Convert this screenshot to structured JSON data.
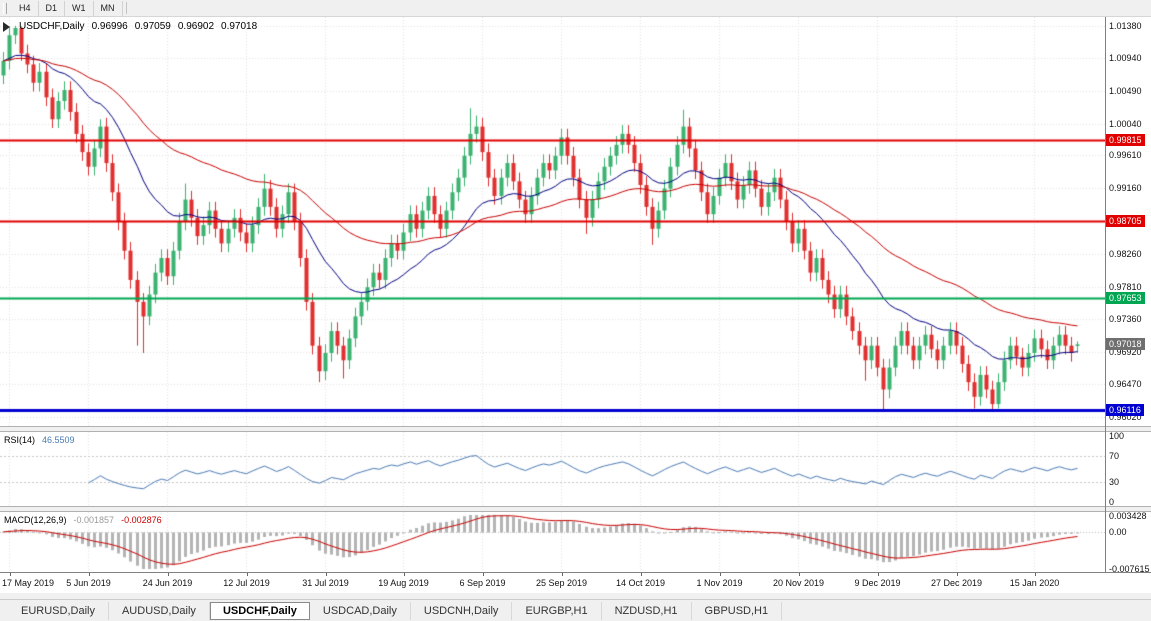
{
  "toolbar": {
    "buttons": [
      "H4",
      "D1",
      "W1",
      "MN"
    ]
  },
  "window": {
    "tabs": [
      "EURUSD,Daily",
      "AUDUSD,Daily",
      "USDCHF,Daily",
      "USDCAD,Daily",
      "USDCNH,Daily",
      "EURGBP,H1",
      "NZDUSD,H1",
      "GBPUSD,H1"
    ],
    "active_tab": "USDCHF,Daily",
    "active_tab_index": 2
  },
  "chart": {
    "info": {
      "symbol_label": "USDCHF,Daily",
      "open": "0.96996",
      "high": "0.97059",
      "low": "0.96902",
      "close": "0.97018"
    },
    "colors": {
      "background": "#ffffff",
      "grid": "#e3e3e3",
      "bull": "#3cb371",
      "bear": "#e03030",
      "ma_fast": "#000080",
      "ma_slow": "#c80000",
      "axis_text": "#111111"
    },
    "price_axis_labels": [
      "1.01380",
      "1.00940",
      "1.00490",
      "1.00040",
      "0.99610",
      "0.99160",
      "0.98260",
      "0.97810",
      "0.97360",
      "0.96920",
      "0.96470",
      "0.96020"
    ]
  },
  "rsi": {
    "label": "RSI(14)",
    "value": "46.5509",
    "color": "#4a7ab5",
    "axis_labels": [
      "100",
      "70",
      "30",
      "0"
    ],
    "levels": [
      70,
      30
    ]
  },
  "macd": {
    "label": "MACD(12,26,9)",
    "value_main": "-0.001857",
    "value_signal": "-0.002876",
    "hist_color": "#b4b4b4",
    "signal_color": "#c80000",
    "axis_labels": [
      "0.003428",
      "0.00",
      "-0.007615"
    ],
    "scale_max": 0.003428,
    "scale_min": -0.007615
  },
  "chart_data": {
    "type": "candlestick",
    "title": "USDCHF,Daily",
    "symbol": "USDCHF",
    "timeframe": "Daily",
    "last_ohlc": {
      "open": 0.96996,
      "high": 0.97059,
      "low": 0.96902,
      "close": 0.97018
    },
    "ylim": [
      0.959,
      1.015
    ],
    "x_tick_labels": [
      "17 May 2019",
      "5 Jun 2019",
      "24 Jun 2019",
      "12 Jul 2019",
      "31 Jul 2019",
      "19 Aug 2019",
      "6 Sep 2019",
      "25 Sep 2019",
      "14 Oct 2019",
      "1 Nov 2019",
      "20 Nov 2019",
      "9 Dec 2019",
      "27 Dec 2019",
      "15 Jan 2020"
    ],
    "first_tick_bar": 1,
    "bars_between_ticks": 13,
    "levels": [
      {
        "price": 0.99815,
        "label": "0.99815",
        "color": "#e00000",
        "line_width": 2,
        "kind": "resistance"
      },
      {
        "price": 0.98705,
        "label": "0.98705",
        "color": "#e00000",
        "line_width": 2,
        "kind": "resistance"
      },
      {
        "price": 0.97653,
        "label": "0.97653",
        "color": "#00a651",
        "line_width": 2,
        "kind": "support"
      },
      {
        "price": 0.96116,
        "label": "0.96116",
        "color": "#0000d0",
        "line_width": 3,
        "kind": "support"
      }
    ],
    "current_price": {
      "value": 0.97018,
      "label": "0.97018",
      "badge_color": "#6f6f6f"
    },
    "indicators": [
      {
        "name": "RSI",
        "period": 14,
        "last_value": 46.5509
      },
      {
        "name": "MACD",
        "fast": 12,
        "slow": 26,
        "signal": 9,
        "last_main": -0.001857,
        "last_signal": -0.002876
      }
    ],
    "ohlc": [
      [
        1.007,
        1.0102,
        1.0058,
        1.009
      ],
      [
        1.009,
        1.0137,
        1.0078,
        1.0125
      ],
      [
        1.0125,
        1.0138,
        1.0113,
        1.0135
      ],
      [
        1.0135,
        1.0137,
        1.009,
        1.01
      ],
      [
        1.01,
        1.0112,
        1.0073,
        1.0085
      ],
      [
        1.0085,
        1.0097,
        1.0048,
        1.006
      ],
      [
        1.006,
        1.0087,
        1.0048,
        1.0075
      ],
      [
        1.0075,
        1.0087,
        1.0028,
        1.004
      ],
      [
        1.004,
        1.0052,
        0.9998,
        1.001
      ],
      [
        1.001,
        1.0047,
        0.9998,
        1.0035
      ],
      [
        1.0035,
        1.0062,
        1.0023,
        1.005
      ],
      [
        1.005,
        1.0062,
        1.0008,
        1.002
      ],
      [
        1.002,
        1.0032,
        0.9978,
        0.999
      ],
      [
        0.999,
        1.0002,
        0.9953,
        0.9965
      ],
      [
        0.9965,
        0.9977,
        0.9933,
        0.9945
      ],
      [
        0.9945,
        0.9982,
        0.9933,
        0.997
      ],
      [
        0.997,
        1.001,
        0.9958,
        1.0
      ],
      [
        1.0,
        1.0012,
        0.9938,
        0.995
      ],
      [
        0.995,
        0.9962,
        0.9898,
        0.991
      ],
      [
        0.991,
        0.9922,
        0.9858,
        0.987
      ],
      [
        0.987,
        0.9882,
        0.9818,
        0.983
      ],
      [
        0.983,
        0.9842,
        0.9778,
        0.979
      ],
      [
        0.979,
        0.9802,
        0.97,
        0.976
      ],
      [
        0.976,
        0.9772,
        0.969,
        0.974
      ],
      [
        0.974,
        0.9782,
        0.9728,
        0.977
      ],
      [
        0.977,
        0.9812,
        0.9758,
        0.98
      ],
      [
        0.98,
        0.9832,
        0.9788,
        0.982
      ],
      [
        0.982,
        0.9832,
        0.9783,
        0.9795
      ],
      [
        0.9795,
        0.9842,
        0.9783,
        0.983
      ],
      [
        0.983,
        0.9882,
        0.9818,
        0.987
      ],
      [
        0.987,
        0.9922,
        0.9858,
        0.99
      ],
      [
        0.99,
        0.9912,
        0.9863,
        0.9875
      ],
      [
        0.9875,
        0.9887,
        0.9838,
        0.985
      ],
      [
        0.985,
        0.9877,
        0.9838,
        0.9865
      ],
      [
        0.9865,
        0.9897,
        0.9853,
        0.9885
      ],
      [
        0.9885,
        0.9897,
        0.9848,
        0.986
      ],
      [
        0.986,
        0.9872,
        0.9828,
        0.984
      ],
      [
        0.984,
        0.9872,
        0.9828,
        0.986
      ],
      [
        0.986,
        0.9887,
        0.9848,
        0.9875
      ],
      [
        0.9875,
        0.9887,
        0.9843,
        0.9855
      ],
      [
        0.9855,
        0.9867,
        0.9828,
        0.984
      ],
      [
        0.984,
        0.9877,
        0.9828,
        0.9865
      ],
      [
        0.9865,
        0.9902,
        0.9853,
        0.989
      ],
      [
        0.989,
        0.9935,
        0.9878,
        0.9915
      ],
      [
        0.9915,
        0.9927,
        0.9878,
        0.989
      ],
      [
        0.989,
        0.9902,
        0.9848,
        0.986
      ],
      [
        0.986,
        0.9892,
        0.9848,
        0.988
      ],
      [
        0.988,
        0.9922,
        0.9868,
        0.991
      ],
      [
        0.991,
        0.9922,
        0.9858,
        0.987
      ],
      [
        0.987,
        0.9882,
        0.9808,
        0.982
      ],
      [
        0.982,
        0.9832,
        0.9748,
        0.976
      ],
      [
        0.976,
        0.9772,
        0.9688,
        0.97
      ],
      [
        0.97,
        0.9712,
        0.965,
        0.9665
      ],
      [
        0.9665,
        0.9702,
        0.9653,
        0.969
      ],
      [
        0.969,
        0.9732,
        0.9678,
        0.972
      ],
      [
        0.972,
        0.9732,
        0.9688,
        0.97
      ],
      [
        0.97,
        0.9712,
        0.9655,
        0.968
      ],
      [
        0.968,
        0.9722,
        0.9668,
        0.971
      ],
      [
        0.971,
        0.9752,
        0.9698,
        0.974
      ],
      [
        0.974,
        0.9772,
        0.9728,
        0.976
      ],
      [
        0.976,
        0.9792,
        0.9748,
        0.978
      ],
      [
        0.978,
        0.9812,
        0.9768,
        0.98
      ],
      [
        0.98,
        0.9812,
        0.9778,
        0.979
      ],
      [
        0.979,
        0.9832,
        0.9778,
        0.982
      ],
      [
        0.982,
        0.9852,
        0.9808,
        0.984
      ],
      [
        0.984,
        0.9852,
        0.9818,
        0.983
      ],
      [
        0.983,
        0.9867,
        0.9818,
        0.9855
      ],
      [
        0.9855,
        0.9892,
        0.9843,
        0.988
      ],
      [
        0.988,
        0.9892,
        0.9848,
        0.986
      ],
      [
        0.986,
        0.9897,
        0.9848,
        0.9885
      ],
      [
        0.9885,
        0.9917,
        0.9873,
        0.9905
      ],
      [
        0.9905,
        0.9917,
        0.9868,
        0.988
      ],
      [
        0.988,
        0.9892,
        0.9848,
        0.986
      ],
      [
        0.986,
        0.9897,
        0.9848,
        0.9885
      ],
      [
        0.9885,
        0.9922,
        0.9873,
        0.991
      ],
      [
        0.991,
        0.9942,
        0.9898,
        0.993
      ],
      [
        0.993,
        0.9972,
        0.9918,
        0.996
      ],
      [
        0.996,
        1.0025,
        0.9948,
        0.999
      ],
      [
        0.999,
        1.0015,
        0.9978,
        1.0
      ],
      [
        1.0,
        1.0012,
        0.9953,
        0.9965
      ],
      [
        0.9965,
        0.9977,
        0.9918,
        0.993
      ],
      [
        0.993,
        0.9942,
        0.9893,
        0.9905
      ],
      [
        0.9905,
        0.9942,
        0.9893,
        0.993
      ],
      [
        0.993,
        0.9962,
        0.9918,
        0.995
      ],
      [
        0.995,
        0.9962,
        0.9913,
        0.9925
      ],
      [
        0.9925,
        0.9937,
        0.9888,
        0.99
      ],
      [
        0.99,
        0.9912,
        0.9868,
        0.988
      ],
      [
        0.988,
        0.9917,
        0.9868,
        0.9905
      ],
      [
        0.9905,
        0.9942,
        0.9893,
        0.993
      ],
      [
        0.993,
        0.9962,
        0.9918,
        0.995
      ],
      [
        0.995,
        0.9962,
        0.9928,
        0.994
      ],
      [
        0.994,
        0.9972,
        0.9928,
        0.996
      ],
      [
        0.996,
        0.9997,
        0.9948,
        0.9985
      ],
      [
        0.9985,
        0.9997,
        0.9948,
        0.996
      ],
      [
        0.996,
        0.9972,
        0.9918,
        0.993
      ],
      [
        0.993,
        0.9942,
        0.9888,
        0.99
      ],
      [
        0.99,
        0.9912,
        0.9853,
        0.9875
      ],
      [
        0.9875,
        0.9912,
        0.9863,
        0.99
      ],
      [
        0.99,
        0.9937,
        0.9888,
        0.9925
      ],
      [
        0.9925,
        0.9957,
        0.9913,
        0.9945
      ],
      [
        0.9945,
        0.9972,
        0.9933,
        0.996
      ],
      [
        0.996,
        0.9987,
        0.9948,
        0.9975
      ],
      [
        0.9975,
        1.0002,
        0.9963,
        0.999
      ],
      [
        0.999,
        1.0002,
        0.9963,
        0.9975
      ],
      [
        0.9975,
        0.9987,
        0.9938,
        0.995
      ],
      [
        0.995,
        0.9962,
        0.9908,
        0.992
      ],
      [
        0.992,
        0.9932,
        0.9878,
        0.989
      ],
      [
        0.989,
        0.9902,
        0.9838,
        0.986
      ],
      [
        0.986,
        0.9897,
        0.9848,
        0.9885
      ],
      [
        0.9885,
        0.9927,
        0.9873,
        0.9915
      ],
      [
        0.9915,
        0.9957,
        0.9903,
        0.9945
      ],
      [
        0.9945,
        0.9987,
        0.9933,
        0.9975
      ],
      [
        0.9975,
        1.0023,
        0.9963,
        1.0
      ],
      [
        1.0,
        1.0012,
        0.9958,
        0.997
      ],
      [
        0.997,
        0.9982,
        0.9928,
        0.994
      ],
      [
        0.994,
        0.9952,
        0.9898,
        0.991
      ],
      [
        0.991,
        0.9922,
        0.9868,
        0.988
      ],
      [
        0.988,
        0.9917,
        0.9868,
        0.9905
      ],
      [
        0.9905,
        0.9942,
        0.9893,
        0.993
      ],
      [
        0.993,
        0.9962,
        0.9918,
        0.995
      ],
      [
        0.995,
        0.9962,
        0.9913,
        0.9925
      ],
      [
        0.9925,
        0.9937,
        0.9888,
        0.99
      ],
      [
        0.99,
        0.9932,
        0.9888,
        0.992
      ],
      [
        0.992,
        0.9952,
        0.9908,
        0.994
      ],
      [
        0.994,
        0.9952,
        0.9903,
        0.9915
      ],
      [
        0.9915,
        0.9927,
        0.9878,
        0.989
      ],
      [
        0.989,
        0.9922,
        0.9878,
        0.991
      ],
      [
        0.991,
        0.9942,
        0.9898,
        0.993
      ],
      [
        0.993,
        0.9942,
        0.9888,
        0.99
      ],
      [
        0.99,
        0.9912,
        0.9858,
        0.987
      ],
      [
        0.987,
        0.9882,
        0.9828,
        0.984
      ],
      [
        0.984,
        0.9872,
        0.9828,
        0.986
      ],
      [
        0.986,
        0.9872,
        0.9818,
        0.983
      ],
      [
        0.983,
        0.9842,
        0.9788,
        0.98
      ],
      [
        0.98,
        0.9832,
        0.9788,
        0.982
      ],
      [
        0.982,
        0.9832,
        0.9778,
        0.979
      ],
      [
        0.979,
        0.9802,
        0.9758,
        0.977
      ],
      [
        0.977,
        0.9782,
        0.9738,
        0.975
      ],
      [
        0.975,
        0.9782,
        0.9738,
        0.977
      ],
      [
        0.977,
        0.9782,
        0.9728,
        0.974
      ],
      [
        0.974,
        0.9752,
        0.9708,
        0.972
      ],
      [
        0.972,
        0.9732,
        0.9688,
        0.97
      ],
      [
        0.97,
        0.9712,
        0.9652,
        0.968
      ],
      [
        0.968,
        0.9712,
        0.9668,
        0.97
      ],
      [
        0.97,
        0.9712,
        0.9658,
        0.967
      ],
      [
        0.967,
        0.9682,
        0.9612,
        0.964
      ],
      [
        0.964,
        0.9682,
        0.9628,
        0.967
      ],
      [
        0.967,
        0.9712,
        0.9658,
        0.97
      ],
      [
        0.97,
        0.9732,
        0.9688,
        0.972
      ],
      [
        0.972,
        0.9732,
        0.9688,
        0.97
      ],
      [
        0.97,
        0.9712,
        0.9668,
        0.968
      ],
      [
        0.968,
        0.9712,
        0.9668,
        0.97
      ],
      [
        0.97,
        0.9727,
        0.9688,
        0.9715
      ],
      [
        0.9715,
        0.9727,
        0.9683,
        0.9695
      ],
      [
        0.9695,
        0.9707,
        0.9668,
        0.968
      ],
      [
        0.968,
        0.9712,
        0.9668,
        0.97
      ],
      [
        0.97,
        0.9732,
        0.9688,
        0.972
      ],
      [
        0.972,
        0.9732,
        0.9688,
        0.97
      ],
      [
        0.97,
        0.9712,
        0.9663,
        0.9675
      ],
      [
        0.9675,
        0.9687,
        0.9638,
        0.965
      ],
      [
        0.965,
        0.9662,
        0.9614,
        0.963
      ],
      [
        0.963,
        0.9672,
        0.9618,
        0.966
      ],
      [
        0.966,
        0.9672,
        0.9628,
        0.964
      ],
      [
        0.964,
        0.9652,
        0.9613,
        0.962
      ],
      [
        0.962,
        0.9662,
        0.9614,
        0.965
      ],
      [
        0.965,
        0.9692,
        0.9638,
        0.968
      ],
      [
        0.968,
        0.9712,
        0.9668,
        0.97
      ],
      [
        0.97,
        0.9712,
        0.9673,
        0.9685
      ],
      [
        0.9685,
        0.9697,
        0.9658,
        0.967
      ],
      [
        0.967,
        0.9702,
        0.9658,
        0.969
      ],
      [
        0.969,
        0.9722,
        0.9678,
        0.971
      ],
      [
        0.971,
        0.9722,
        0.9683,
        0.9695
      ],
      [
        0.9695,
        0.9707,
        0.9668,
        0.968
      ],
      [
        0.968,
        0.9712,
        0.9668,
        0.97
      ],
      [
        0.97,
        0.9727,
        0.9688,
        0.9715
      ],
      [
        0.9715,
        0.9727,
        0.9688,
        0.97
      ],
      [
        0.97,
        0.9712,
        0.9678,
        0.969
      ],
      [
        0.96996,
        0.97059,
        0.96902,
        0.97018
      ]
    ]
  }
}
